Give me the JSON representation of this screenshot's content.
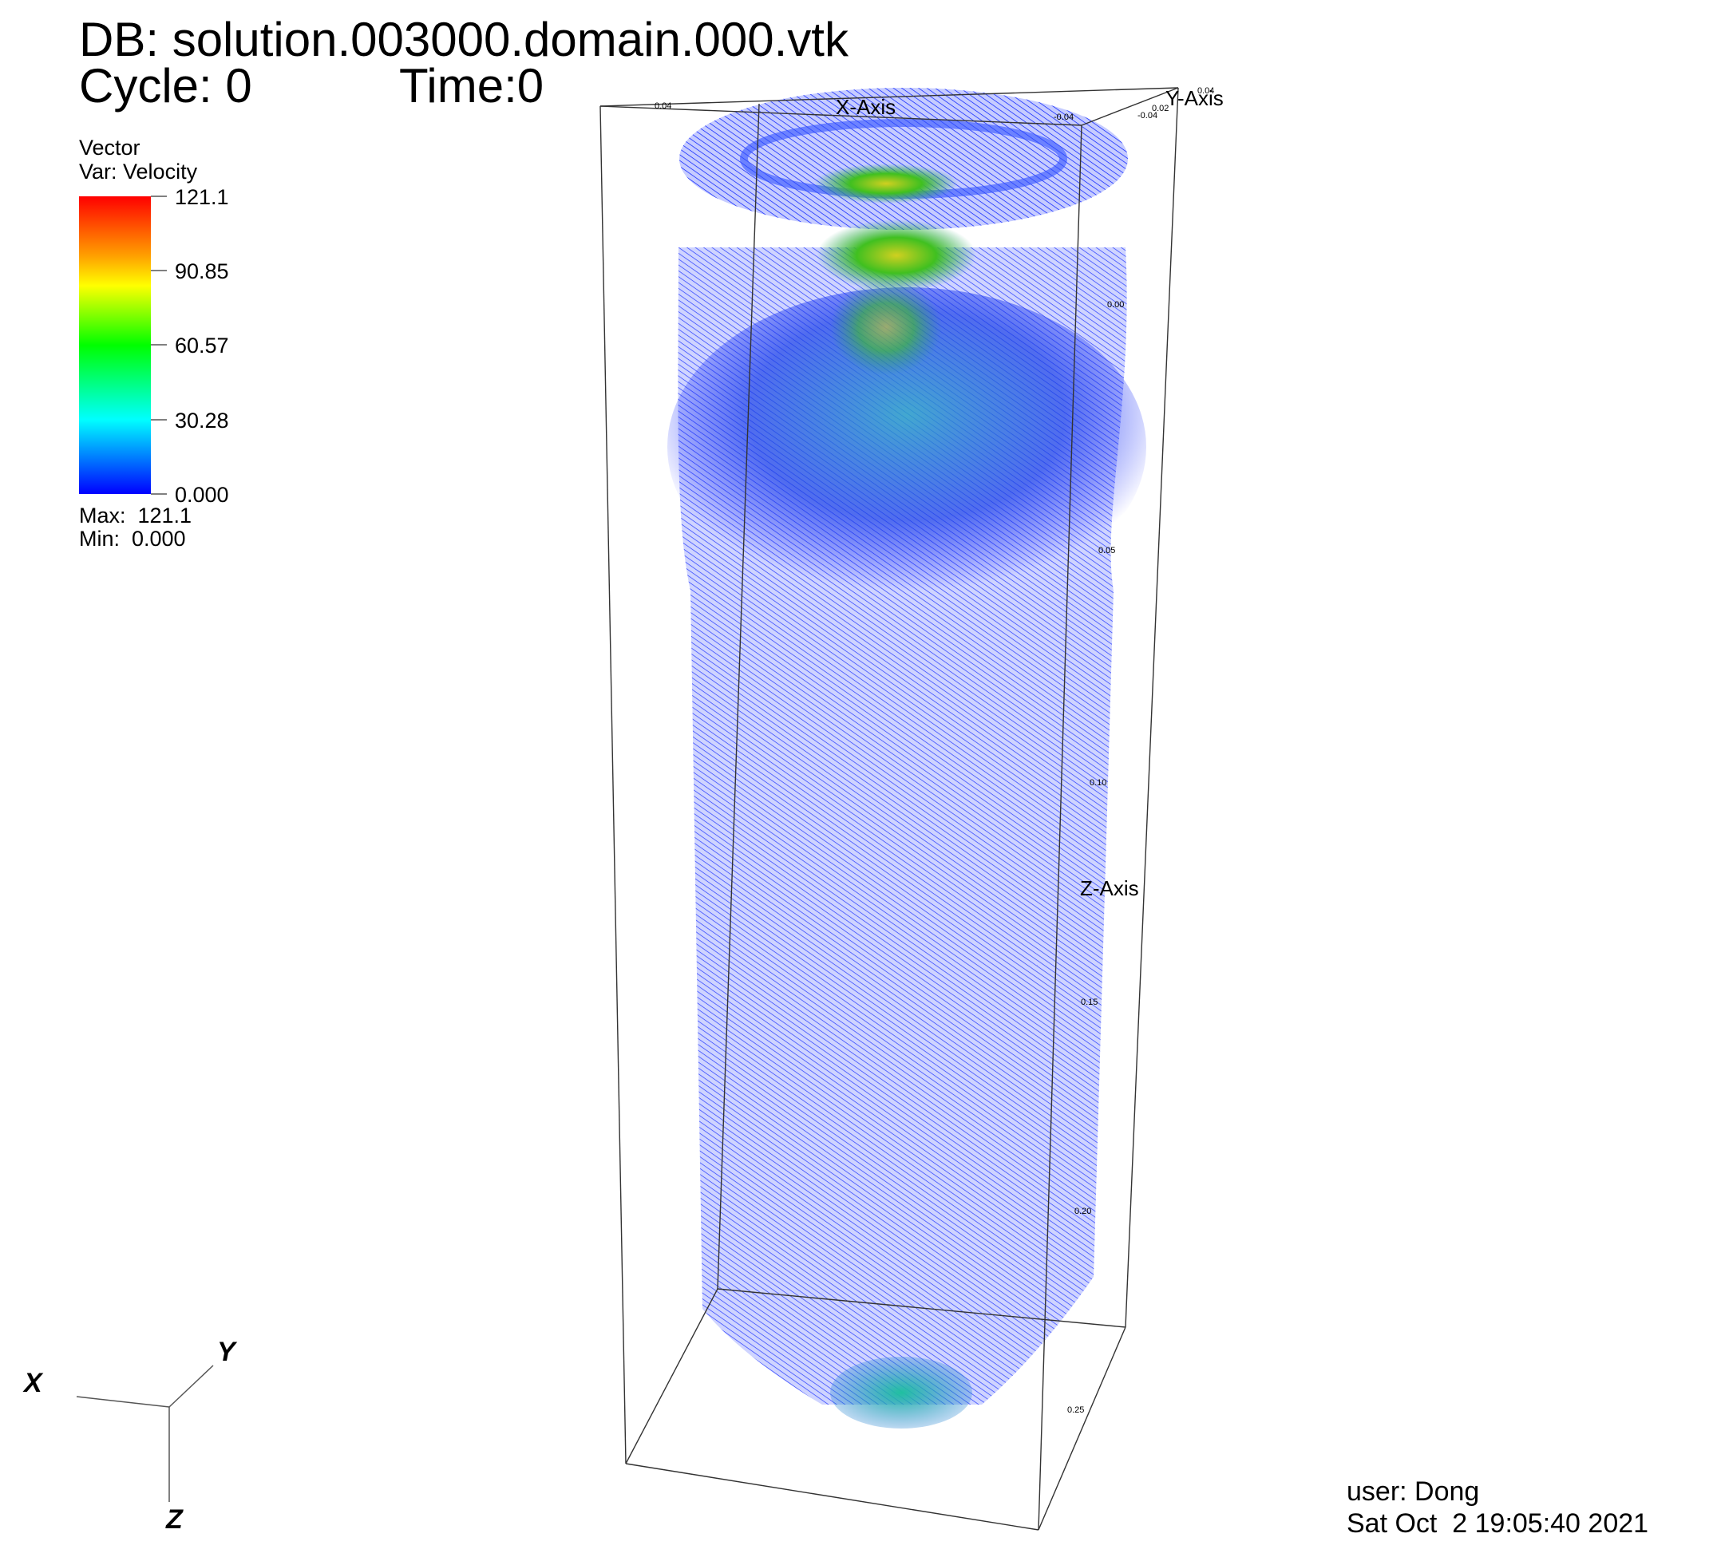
{
  "header": {
    "db": "DB: solution.003000.domain.000.vtk",
    "cycle": "Cycle: 0",
    "time": "Time:0"
  },
  "legend": {
    "title": "Vector",
    "var": "Var: Velocity",
    "ticks": [
      "121.1",
      "90.85",
      "60.57",
      "30.28",
      "0.000"
    ],
    "max": "Max:  121.1",
    "min": "Min:  0.000"
  },
  "axes": {
    "x_label": "X-Axis",
    "y_label": "Y-Axis",
    "z_label": "Z-Axis",
    "z_ticks": [
      "0.00",
      "0.05",
      "0.10",
      "0.15",
      "0.20",
      "0.25"
    ],
    "x_ticks": [
      "0.04",
      "-0.04"
    ],
    "y_ticks": [
      "0.04",
      "0.02",
      "-0.04"
    ]
  },
  "triad": {
    "x": "X",
    "y": "Y",
    "z": "Z"
  },
  "footer": {
    "user": "user: Dong",
    "date": "Sat Oct  2 19:05:40 2021"
  }
}
